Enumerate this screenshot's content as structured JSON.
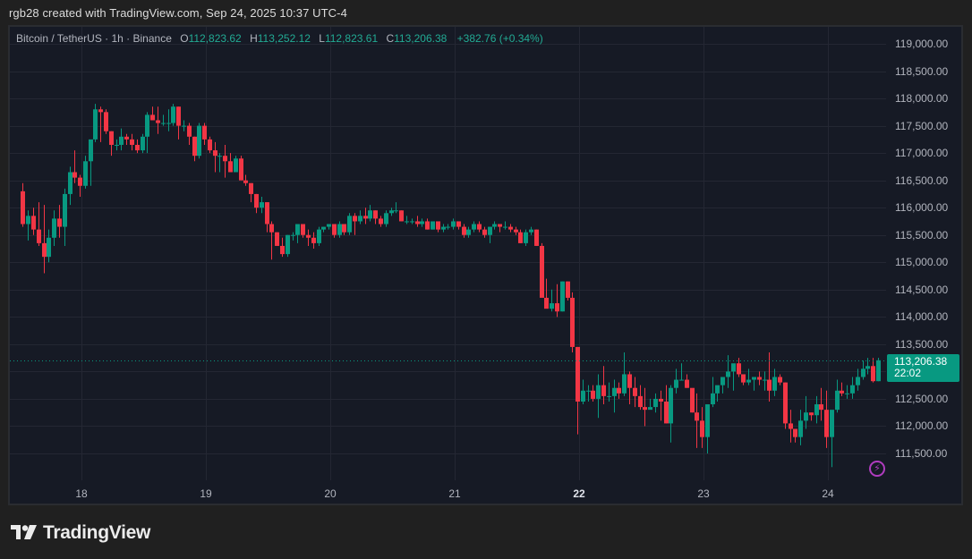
{
  "attribution": "rgb28 created with TradingView.com, Sep 24, 2025 10:37 UTC-4",
  "legend": {
    "symbol": "Bitcoin / TetherUS · 1h · Binance",
    "open_label": "O",
    "open": "112,823.62",
    "high_label": "H",
    "high": "113,252.12",
    "low_label": "L",
    "low": "112,823.61",
    "close_label": "C",
    "close": "113,206.38",
    "change": "+382.76 (+0.34%)"
  },
  "price_tag": {
    "price": "113,206.38",
    "countdown": "22:02"
  },
  "brand": {
    "name": "TradingView"
  },
  "colors": {
    "up": "#089981",
    "down": "#f23645",
    "background": "#161a25",
    "grid": "#242733",
    "text": "#b2b5be",
    "price_line": "#089981"
  },
  "chart_data": {
    "type": "candlestick",
    "title": "Bitcoin / TetherUS · 1h · Binance",
    "xlabel": "",
    "ylabel": "",
    "ylim": [
      111000,
      119300
    ],
    "y_ticks": [
      111500,
      112000,
      112500,
      113000,
      113500,
      114000,
      114500,
      115000,
      115500,
      116000,
      116500,
      117000,
      117500,
      118000,
      118500,
      119000
    ],
    "y_tick_labels": [
      "111,500.00",
      "112,000.00",
      "112,500.00",
      "",
      "113,500.00",
      "114,000.00",
      "114,500.00",
      "115,000.00",
      "115,500.00",
      "116,000.00",
      "116,500.00",
      "117,000.00",
      "117,500.00",
      "118,000.00",
      "118,500.00",
      "119,000.00"
    ],
    "x_ticks": [
      "18",
      "19",
      "20",
      "21",
      "22",
      "23",
      "24"
    ],
    "x_tick_bold": "22",
    "last_price": 113206.38,
    "interval": "1h",
    "first_candle": "Sep 17 ~10:00",
    "ohlc": [
      [
        116300,
        116450,
        115650,
        115700
      ],
      [
        115700,
        115950,
        115400,
        115850
      ],
      [
        115850,
        116000,
        115500,
        115600
      ],
      [
        115600,
        116100,
        115300,
        115350
      ],
      [
        115350,
        116050,
        114800,
        115100
      ],
      [
        115100,
        115600,
        115000,
        115450
      ],
      [
        115450,
        115950,
        115300,
        115800
      ],
      [
        115800,
        116050,
        115450,
        115650
      ],
      [
        115650,
        116350,
        115300,
        116250
      ],
      [
        116250,
        116750,
        116050,
        116650
      ],
      [
        116650,
        117050,
        116450,
        116550
      ],
      [
        116550,
        116600,
        116200,
        116400
      ],
      [
        116400,
        116950,
        116350,
        116850
      ],
      [
        116850,
        117200,
        116400,
        117250
      ],
      [
        117250,
        117900,
        117200,
        117800
      ],
      [
        117800,
        117850,
        117200,
        117750
      ],
      [
        117750,
        117800,
        117350,
        117400
      ],
      [
        117400,
        117400,
        116950,
        117150
      ],
      [
        117150,
        117250,
        117050,
        117150
      ],
      [
        117150,
        117450,
        117050,
        117300
      ],
      [
        117300,
        117350,
        117150,
        117250
      ],
      [
        117250,
        117350,
        117050,
        117150
      ],
      [
        117150,
        117250,
        117000,
        117050
      ],
      [
        117050,
        117350,
        117000,
        117300
      ],
      [
        117300,
        117750,
        117000,
        117700
      ],
      [
        117700,
        117850,
        117600,
        117600
      ],
      [
        117600,
        117850,
        117350,
        117550
      ],
      [
        117550,
        117700,
        117500,
        117550
      ],
      [
        117550,
        117800,
        117400,
        117550
      ],
      [
        117550,
        117900,
        117500,
        117850
      ],
      [
        117850,
        117850,
        117250,
        117500
      ],
      [
        117500,
        117600,
        117400,
        117500
      ],
      [
        117500,
        117550,
        117150,
        117300
      ],
      [
        117300,
        117300,
        116850,
        116950
      ],
      [
        116950,
        117550,
        116900,
        117500
      ],
      [
        117500,
        117550,
        117150,
        117250
      ],
      [
        117250,
        117300,
        117000,
        117050
      ],
      [
        117050,
        117200,
        116650,
        116950
      ],
      [
        116950,
        117000,
        116650,
        116950
      ],
      [
        116950,
        117150,
        116550,
        116850
      ],
      [
        116850,
        117000,
        116650,
        116650
      ],
      [
        116650,
        116950,
        116650,
        116900
      ],
      [
        116900,
        116950,
        116500,
        116500
      ],
      [
        116500,
        116600,
        116400,
        116450
      ],
      [
        116450,
        116450,
        116100,
        116250
      ],
      [
        116250,
        116250,
        115900,
        116000
      ],
      [
        116000,
        116200,
        115900,
        116100
      ],
      [
        116100,
        116100,
        115550,
        115700
      ],
      [
        115700,
        115750,
        115050,
        115550
      ],
      [
        115550,
        115550,
        115300,
        115300
      ],
      [
        115300,
        115450,
        115100,
        115150
      ],
      [
        115150,
        115500,
        115100,
        115500
      ],
      [
        115500,
        115550,
        115400,
        115500
      ],
      [
        115500,
        115650,
        115350,
        115700
      ],
      [
        115700,
        115700,
        115450,
        115500
      ],
      [
        115500,
        115600,
        115300,
        115450
      ],
      [
        115450,
        115550,
        115250,
        115350
      ],
      [
        115350,
        115650,
        115300,
        115600
      ],
      [
        115600,
        115650,
        115550,
        115650
      ],
      [
        115650,
        115700,
        115600,
        115700
      ],
      [
        115700,
        115700,
        115450,
        115500
      ],
      [
        115500,
        115750,
        115450,
        115700
      ],
      [
        115700,
        115700,
        115500,
        115550
      ],
      [
        115550,
        115900,
        115500,
        115850
      ],
      [
        115850,
        115900,
        115500,
        115750
      ],
      [
        115750,
        115950,
        115700,
        115850
      ],
      [
        115850,
        116000,
        115700,
        115800
      ],
      [
        115800,
        116050,
        115750,
        115950
      ],
      [
        115950,
        115950,
        115700,
        115800
      ],
      [
        115800,
        115850,
        115650,
        115700
      ],
      [
        115700,
        115950,
        115650,
        115900
      ],
      [
        115900,
        116000,
        115850,
        115950
      ],
      [
        115950,
        116100,
        115900,
        115950
      ],
      [
        115950,
        115950,
        115750,
        115750
      ],
      [
        115750,
        115850,
        115700,
        115750
      ],
      [
        115750,
        115800,
        115700,
        115750
      ],
      [
        115750,
        115850,
        115650,
        115700
      ],
      [
        115700,
        115800,
        115650,
        115750
      ],
      [
        115750,
        115800,
        115600,
        115600
      ],
      [
        115600,
        115750,
        115600,
        115750
      ],
      [
        115750,
        115750,
        115550,
        115600
      ],
      [
        115600,
        115700,
        115550,
        115650
      ],
      [
        115650,
        115700,
        115600,
        115650
      ],
      [
        115650,
        115800,
        115600,
        115750
      ],
      [
        115750,
        115750,
        115600,
        115650
      ],
      [
        115650,
        115700,
        115450,
        115500
      ],
      [
        115500,
        115650,
        115450,
        115600
      ],
      [
        115600,
        115750,
        115550,
        115700
      ],
      [
        115700,
        115750,
        115550,
        115600
      ],
      [
        115600,
        115650,
        115450,
        115500
      ],
      [
        115500,
        115650,
        115350,
        115650
      ],
      [
        115650,
        115750,
        115600,
        115700
      ],
      [
        115700,
        115700,
        115550,
        115650
      ],
      [
        115650,
        115750,
        115600,
        115650
      ],
      [
        115650,
        115700,
        115550,
        115600
      ],
      [
        115600,
        115650,
        115500,
        115550
      ],
      [
        115550,
        115600,
        115350,
        115350
      ],
      [
        115350,
        115600,
        115300,
        115550
      ],
      [
        115550,
        115650,
        115500,
        115600
      ],
      [
        115600,
        115600,
        115300,
        115300
      ],
      [
        115300,
        115350,
        114600,
        114350
      ],
      [
        114350,
        114700,
        114200,
        114150
      ],
      [
        114150,
        114500,
        114100,
        114250
      ],
      [
        114250,
        114600,
        114000,
        114100
      ],
      [
        114100,
        114650,
        114100,
        114650
      ],
      [
        114650,
        114650,
        114300,
        114350
      ],
      [
        114350,
        114450,
        113350,
        113450
      ],
      [
        113450,
        113450,
        111850,
        112450
      ],
      [
        112450,
        112850,
        112400,
        112650
      ],
      [
        112650,
        112750,
        112450,
        112650
      ],
      [
        112650,
        112750,
        112450,
        112500
      ],
      [
        112500,
        112950,
        112150,
        112750
      ],
      [
        112750,
        113100,
        112400,
        112550
      ],
      [
        112550,
        112800,
        112450,
        112550
      ],
      [
        112550,
        112850,
        112250,
        112700
      ],
      [
        112700,
        112800,
        112500,
        112600
      ],
      [
        112600,
        113350,
        112550,
        112950
      ],
      [
        112950,
        113000,
        112400,
        112700
      ],
      [
        112700,
        112900,
        112350,
        112550
      ],
      [
        112550,
        112750,
        112300,
        112350
      ],
      [
        112350,
        112700,
        112000,
        112300
      ],
      [
        112300,
        112500,
        112350,
        112350
      ],
      [
        112350,
        112600,
        112250,
        112500
      ],
      [
        112500,
        112650,
        112100,
        112450
      ],
      [
        112450,
        112750,
        112050,
        112050
      ],
      [
        112050,
        112750,
        111700,
        112700
      ],
      [
        112700,
        113050,
        112600,
        112850
      ],
      [
        112850,
        113150,
        112850,
        112850
      ],
      [
        112850,
        112950,
        112700,
        112700
      ],
      [
        112700,
        112650,
        112250,
        112250
      ],
      [
        112250,
        112600,
        111600,
        112100
      ],
      [
        112100,
        112350,
        111600,
        111800
      ],
      [
        111800,
        112200,
        111500,
        112400
      ],
      [
        112400,
        112900,
        112350,
        112600
      ],
      [
        112600,
        112700,
        112450,
        112750
      ],
      [
        112750,
        112850,
        112600,
        112900
      ],
      [
        112900,
        113300,
        112700,
        113000
      ],
      [
        113000,
        113100,
        112650,
        113150
      ],
      [
        113150,
        113250,
        112900,
        112950
      ],
      [
        112950,
        112950,
        112750,
        112800
      ],
      [
        112800,
        113050,
        112750,
        112850
      ],
      [
        112850,
        112850,
        112650,
        112900
      ],
      [
        112900,
        113000,
        112750,
        112850
      ],
      [
        112850,
        113000,
        112650,
        112850
      ],
      [
        112850,
        113350,
        112450,
        112650
      ],
      [
        112650,
        113050,
        112550,
        112900
      ],
      [
        112900,
        112950,
        112750,
        112800
      ],
      [
        112800,
        112800,
        111950,
        112050
      ],
      [
        112050,
        112300,
        111700,
        111950
      ],
      [
        111950,
        111950,
        111700,
        111800
      ],
      [
        111800,
        112300,
        111650,
        112100
      ],
      [
        112100,
        112550,
        111950,
        112250
      ],
      [
        112250,
        112250,
        112100,
        112200
      ],
      [
        112200,
        112550,
        112050,
        112400
      ],
      [
        112400,
        112700,
        112100,
        112300
      ],
      [
        112300,
        112650,
        111600,
        111800
      ],
      [
        111800,
        112250,
        111250,
        112300
      ],
      [
        112300,
        112850,
        112250,
        112650
      ],
      [
        112650,
        112800,
        112550,
        112600
      ],
      [
        112600,
        112750,
        112500,
        112600
      ],
      [
        112600,
        112900,
        112500,
        112750
      ],
      [
        112750,
        113050,
        112650,
        112900
      ],
      [
        112900,
        113200,
        112850,
        113050
      ],
      [
        113050,
        113250,
        112950,
        113100
      ],
      [
        113100,
        113250,
        112800,
        112823
      ],
      [
        112823,
        113252,
        112823,
        113206
      ]
    ]
  }
}
